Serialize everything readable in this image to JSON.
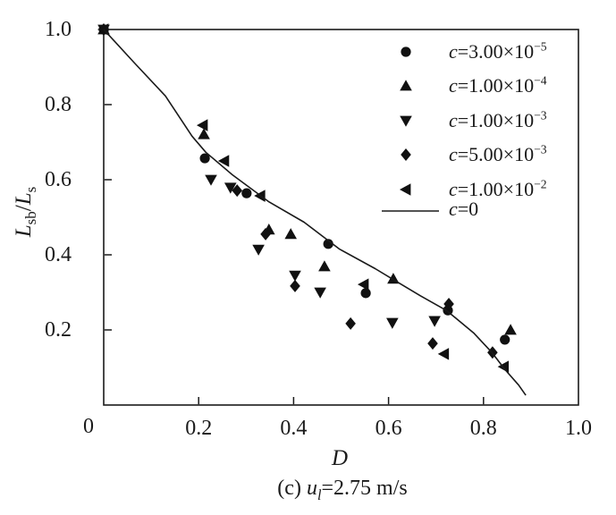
{
  "figure": {
    "background": "#ffffff",
    "ink_color": "#1a1a1a",
    "marker_color": "#111111"
  },
  "axes": {
    "xlabel": "D",
    "ylabel_parts": {
      "var1": "L",
      "sub1": "sb",
      "sep": "/",
      "var2": "L",
      "sub2": "s"
    },
    "corner_label": "0",
    "x_tick_labels": [
      "0.2",
      "0.4",
      "0.6",
      "0.8",
      "1.0"
    ],
    "y_tick_labels": [
      "0.2",
      "0.4",
      "0.6",
      "0.8",
      "1.0"
    ]
  },
  "caption": {
    "prefix": "(c) ",
    "var": "u",
    "sub": "l",
    "suffix": "=2.75 m/s"
  },
  "legend": {
    "position": "upper-right-inside",
    "items": [
      {
        "marker": "circle",
        "var": "c",
        "eq": "=3.00×10",
        "sup": "−5"
      },
      {
        "marker": "triangle-up",
        "var": "c",
        "eq": "=1.00×10",
        "sup": "−4"
      },
      {
        "marker": "triangle-down",
        "var": "c",
        "eq": "=1.00×10",
        "sup": "−3"
      },
      {
        "marker": "diamond",
        "var": "c",
        "eq": "=5.00×10",
        "sup": "−3"
      },
      {
        "marker": "triangle-left",
        "var": "c",
        "eq": "=1.00×10",
        "sup": "−2"
      },
      {
        "marker": "line",
        "var": "c",
        "eq": "=0",
        "sup": ""
      }
    ]
  },
  "chart_data": {
    "type": "scatter",
    "title": "",
    "xlabel": "D",
    "ylabel": "Lsb/Ls",
    "xlim": [
      0,
      1.0
    ],
    "ylim": [
      0,
      1.0
    ],
    "x_ticks": [
      0,
      0.2,
      0.4,
      0.6,
      0.8,
      1.0
    ],
    "y_ticks": [
      0,
      0.2,
      0.4,
      0.6,
      0.8,
      1.0
    ],
    "grid": false,
    "legend_position": "upper right",
    "series": [
      {
        "name": "c=3.00×10^-5",
        "marker": "circle",
        "points": [
          [
            0.0,
            1.0
          ],
          [
            0.213,
            0.657
          ],
          [
            0.301,
            0.564
          ],
          [
            0.473,
            0.429
          ],
          [
            0.552,
            0.298
          ],
          [
            0.725,
            0.252
          ],
          [
            0.845,
            0.174
          ]
        ]
      },
      {
        "name": "c=1.00×10^-4",
        "marker": "triangle-up",
        "points": [
          [
            0.0,
            1.0
          ],
          [
            0.211,
            0.721
          ],
          [
            0.348,
            0.467
          ],
          [
            0.394,
            0.455
          ],
          [
            0.465,
            0.369
          ],
          [
            0.61,
            0.336
          ],
          [
            0.857,
            0.2
          ]
        ]
      },
      {
        "name": "c=1.00×10^-3",
        "marker": "triangle-down",
        "points": [
          [
            0.0,
            1.0
          ],
          [
            0.226,
            0.6
          ],
          [
            0.267,
            0.579
          ],
          [
            0.326,
            0.414
          ],
          [
            0.403,
            0.345
          ],
          [
            0.456,
            0.3
          ],
          [
            0.608,
            0.219
          ],
          [
            0.697,
            0.224
          ]
        ]
      },
      {
        "name": "c=5.00×10^-3",
        "marker": "diamond",
        "points": [
          [
            0.0,
            1.0
          ],
          [
            0.281,
            0.571
          ],
          [
            0.341,
            0.455
          ],
          [
            0.403,
            0.317
          ],
          [
            0.52,
            0.217
          ],
          [
            0.693,
            0.164
          ],
          [
            0.727,
            0.269
          ],
          [
            0.819,
            0.14
          ]
        ]
      },
      {
        "name": "c=1.00×10^-2",
        "marker": "triangle-left",
        "points": [
          [
            0.0,
            1.0
          ],
          [
            0.209,
            0.745
          ],
          [
            0.254,
            0.65
          ],
          [
            0.33,
            0.557
          ],
          [
            0.548,
            0.321
          ],
          [
            0.717,
            0.136
          ],
          [
            0.843,
            0.102
          ]
        ]
      },
      {
        "name": "c=0",
        "marker": "line",
        "points": [
          [
            0.0,
            1.0
          ],
          [
            0.064,
            0.912
          ],
          [
            0.13,
            0.823
          ],
          [
            0.186,
            0.716
          ],
          [
            0.215,
            0.673
          ],
          [
            0.271,
            0.613
          ],
          [
            0.347,
            0.542
          ],
          [
            0.422,
            0.487
          ],
          [
            0.497,
            0.415
          ],
          [
            0.572,
            0.363
          ],
          [
            0.61,
            0.334
          ],
          [
            0.667,
            0.291
          ],
          [
            0.723,
            0.251
          ],
          [
            0.78,
            0.191
          ],
          [
            0.817,
            0.141
          ],
          [
            0.845,
            0.095
          ],
          [
            0.874,
            0.053
          ],
          [
            0.889,
            0.026
          ]
        ]
      }
    ]
  }
}
